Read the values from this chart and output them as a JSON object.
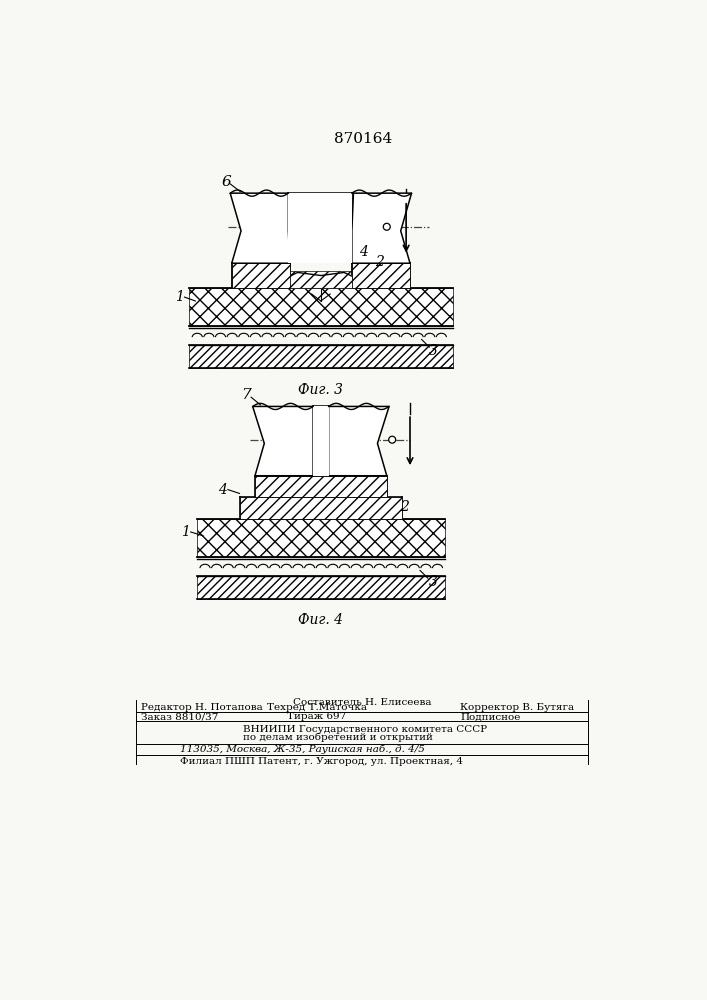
{
  "title": "870164",
  "fig3_label": "Фиг. 3",
  "fig4_label": "Фиг. 4",
  "footer_sostavitel": "Составитель Н. Елисеева",
  "footer_redaktor": "Редактор Н. Потапова",
  "footer_tekhred": "Техред Т.Маточка",
  "footer_korrektor": "Корректор В. Бутяга",
  "footer_zakaz": "Заказ 8810/37",
  "footer_tirazh": "Тираж 697",
  "footer_podpisnoe": "Подписное",
  "footer_vniip1": "ВНИИПИ Государственного комитета СССР",
  "footer_vniip2": "по делам изобретений и открытий",
  "footer_addr": "113035, Москва, Ж-35, Раушская наб., д. 4/5",
  "footer_filial": "Филиал ПШП Патент, г. Ужгород, ул. Проектная, 4",
  "bg_color": "#f8f8f5",
  "line_color": "#000000"
}
